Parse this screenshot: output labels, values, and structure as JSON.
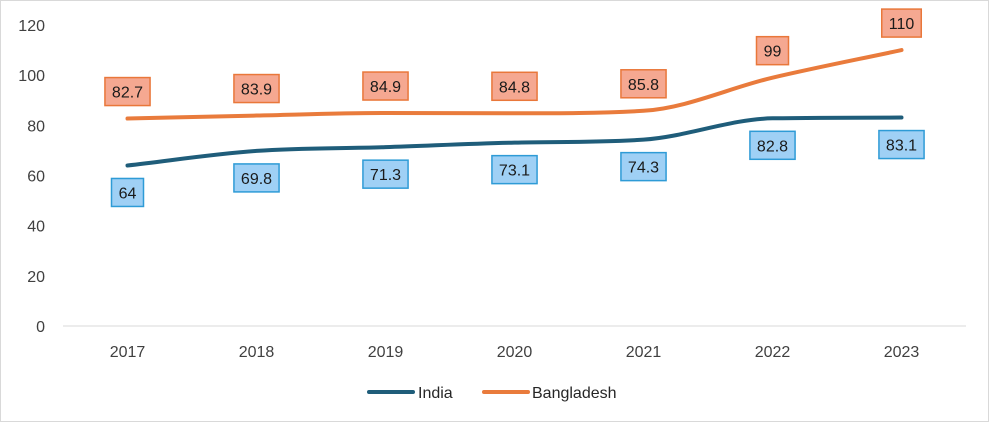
{
  "chart_data": {
    "type": "line",
    "title": "",
    "xlabel": "",
    "ylabel": "",
    "categories": [
      "2017",
      "2018",
      "2019",
      "2020",
      "2021",
      "2022",
      "2023"
    ],
    "ylim": [
      0,
      120
    ],
    "yticks": [
      0,
      20,
      40,
      60,
      80,
      100,
      120
    ],
    "grid": false,
    "legend_position": "bottom",
    "series": [
      {
        "name": "India",
        "values": [
          64,
          69.8,
          71.3,
          73.1,
          74.3,
          82.8,
          83.1
        ],
        "labels": [
          "64",
          "69.8",
          "71.3",
          "73.1",
          "74.3",
          "82.8",
          "83.1"
        ],
        "color": "#1f5d7a",
        "label_fill": "#9fd0f5",
        "label_border": "#2e9bd6",
        "label_placement": "below"
      },
      {
        "name": "Bangladesh",
        "values": [
          82.7,
          83.9,
          84.9,
          84.8,
          85.8,
          99,
          110
        ],
        "labels": [
          "82.7",
          "83.9",
          "84.9",
          "84.8",
          "85.8",
          "99",
          "110"
        ],
        "color": "#e97b3c",
        "label_fill": "#f5a891",
        "label_border": "#e9773a",
        "label_placement": "above"
      }
    ],
    "axis_color": "#d9d9d9"
  }
}
